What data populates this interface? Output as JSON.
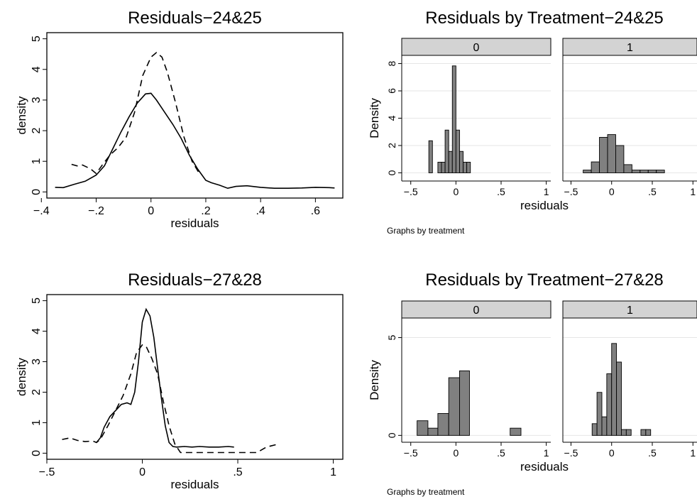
{
  "figure": {
    "background": "#ffffff",
    "bar_fill": "#808080",
    "strip_fill": "#d3d3d3",
    "grid_color": "#e6e6e6"
  },
  "chart_data": [
    {
      "type": "line",
      "title": "Residuals−24&25",
      "xlabel": "residuals",
      "ylabel": "density",
      "xlim": [
        -0.38,
        0.7
      ],
      "ylim": [
        -0.2,
        5.2
      ],
      "x_ticks": [
        -0.4,
        -0.2,
        0,
        0.2,
        0.4,
        0.6
      ],
      "x_tick_labels": [
        "−.4",
        "−.2",
        "0",
        ".2",
        ".4",
        ".6"
      ],
      "y_ticks": [
        0,
        1,
        2,
        3,
        4,
        5
      ],
      "y_tick_labels": [
        "0",
        "1",
        "2",
        "3",
        "4",
        "5"
      ],
      "series": [
        {
          "style": "solid",
          "x": [
            -0.35,
            -0.32,
            -0.28,
            -0.24,
            -0.2,
            -0.17,
            -0.14,
            -0.11,
            -0.08,
            -0.05,
            -0.02,
            0,
            0.02,
            0.05,
            0.08,
            0.11,
            0.14,
            0.17,
            0.2,
            0.22,
            0.25,
            0.28,
            0.31,
            0.35,
            0.4,
            0.45,
            0.5,
            0.55,
            0.6,
            0.65,
            0.67
          ],
          "y": [
            0.15,
            0.14,
            0.25,
            0.35,
            0.55,
            0.85,
            1.4,
            1.95,
            2.45,
            2.9,
            3.2,
            3.22,
            3.0,
            2.6,
            2.2,
            1.75,
            1.2,
            0.75,
            0.38,
            0.3,
            0.22,
            0.12,
            0.18,
            0.2,
            0.15,
            0.12,
            0.12,
            0.13,
            0.15,
            0.14,
            0.13
          ]
        },
        {
          "style": "dashed",
          "x": [
            -0.29,
            -0.27,
            -0.25,
            -0.22,
            -0.2,
            -0.18,
            -0.15,
            -0.12,
            -0.09,
            -0.06,
            -0.03,
            0,
            0.02,
            0.04,
            0.06,
            0.09,
            0.12,
            0.15,
            0.18
          ],
          "y": [
            0.9,
            0.85,
            0.88,
            0.75,
            0.6,
            0.85,
            1.2,
            1.45,
            1.8,
            2.6,
            3.8,
            4.4,
            4.55,
            4.4,
            3.9,
            2.9,
            1.8,
            1.0,
            0.55
          ]
        }
      ]
    },
    {
      "type": "bar",
      "title": "Residuals by Treatment−24&25",
      "xlabel": "residuals",
      "ylabel": "Density",
      "note": "Graphs by treatment",
      "xlim": [
        -0.6,
        1.05
      ],
      "ylim": [
        -0.6,
        8.6
      ],
      "x_ticks": [
        -0.5,
        0,
        0.5,
        1
      ],
      "x_tick_labels": [
        "−.5",
        "0",
        ".5",
        "1"
      ],
      "y_ticks": [
        0,
        2,
        4,
        6,
        8
      ],
      "y_tick_labels": [
        "0",
        "2",
        "4",
        "6",
        "8"
      ],
      "panels": [
        {
          "label": "0",
          "bins": [
            [
              -0.3,
              -0.26,
              2.35
            ],
            [
              -0.2,
              -0.16,
              0.78
            ],
            [
              -0.16,
              -0.12,
              0.78
            ],
            [
              -0.12,
              -0.08,
              3.13
            ],
            [
              -0.08,
              -0.04,
              1.57
            ],
            [
              -0.04,
              0,
              7.83
            ],
            [
              0,
              0.04,
              3.13
            ],
            [
              0.04,
              0.08,
              1.57
            ],
            [
              0.08,
              0.12,
              0.78
            ],
            [
              0.12,
              0.16,
              0.78
            ]
          ]
        },
        {
          "label": "1",
          "bins": [
            [
              -0.35,
              -0.25,
              0.2
            ],
            [
              -0.25,
              -0.15,
              0.8
            ],
            [
              -0.15,
              -0.05,
              2.6
            ],
            [
              -0.05,
              0.05,
              2.8
            ],
            [
              0.05,
              0.15,
              2.0
            ],
            [
              0.15,
              0.25,
              0.6
            ],
            [
              0.25,
              0.35,
              0.2
            ],
            [
              0.35,
              0.45,
              0.2
            ],
            [
              0.45,
              0.55,
              0.2
            ],
            [
              0.55,
              0.65,
              0.2
            ]
          ]
        }
      ]
    },
    {
      "type": "line",
      "title": "Residuals−27&28",
      "xlabel": "residuals",
      "ylabel": "density",
      "xlim": [
        -0.5,
        1.05
      ],
      "ylim": [
        -0.2,
        5.2
      ],
      "x_ticks": [
        -0.5,
        0,
        0.5,
        1
      ],
      "x_tick_labels": [
        "−.5",
        "0",
        ".5",
        "1"
      ],
      "y_ticks": [
        0,
        1,
        2,
        3,
        4,
        5
      ],
      "y_tick_labels": [
        "0",
        "1",
        "2",
        "3",
        "4",
        "5"
      ],
      "series": [
        {
          "style": "solid",
          "x": [
            -0.24,
            -0.22,
            -0.2,
            -0.17,
            -0.14,
            -0.11,
            -0.08,
            -0.06,
            -0.04,
            -0.02,
            0,
            0.02,
            0.04,
            0.06,
            0.08,
            0.1,
            0.12,
            0.14,
            0.16,
            0.18,
            0.22,
            0.26,
            0.3,
            0.35,
            0.4,
            0.45,
            0.48
          ],
          "y": [
            0.35,
            0.5,
            0.85,
            1.2,
            1.4,
            1.6,
            1.65,
            1.6,
            2.0,
            3.0,
            4.3,
            4.72,
            4.5,
            3.8,
            2.8,
            1.8,
            0.9,
            0.35,
            0.22,
            0.2,
            0.22,
            0.2,
            0.22,
            0.2,
            0.2,
            0.22,
            0.2
          ]
        },
        {
          "style": "dashed",
          "x": [
            -0.42,
            -0.38,
            -0.34,
            -0.3,
            -0.26,
            -0.24,
            -0.22,
            -0.18,
            -0.14,
            -0.1,
            -0.06,
            -0.03,
            0,
            0.02,
            0.05,
            0.08,
            0.11,
            0.14,
            0.17,
            0.2,
            0.3,
            0.4,
            0.5,
            0.6,
            0.65,
            0.7
          ],
          "y": [
            0.45,
            0.5,
            0.42,
            0.38,
            0.4,
            0.35,
            0.45,
            0.9,
            1.4,
            1.9,
            2.6,
            3.3,
            3.55,
            3.5,
            3.1,
            2.6,
            1.7,
            0.9,
            0.3,
            0.02,
            0.02,
            0.02,
            0.02,
            0.02,
            0.2,
            0.28
          ]
        }
      ]
    },
    {
      "type": "bar",
      "title": "Residuals by Treatment−27&28",
      "xlabel": "residuals",
      "ylabel": "Density",
      "note": "Graphs by treatment",
      "xlim": [
        -0.6,
        1.05
      ],
      "ylim": [
        -0.35,
        6.0
      ],
      "x_ticks": [
        -0.5,
        0,
        0.5,
        1
      ],
      "x_tick_labels": [
        "−.5",
        "0",
        ".5",
        "1"
      ],
      "y_ticks": [
        0,
        5
      ],
      "y_tick_labels": [
        "0",
        "5"
      ],
      "panels": [
        {
          "label": "0",
          "bins": [
            [
              -0.43,
              -0.31,
              0.75
            ],
            [
              -0.31,
              -0.2,
              0.37
            ],
            [
              -0.2,
              -0.08,
              1.12
            ],
            [
              -0.08,
              0.04,
              2.95
            ],
            [
              0.04,
              0.15,
              3.3
            ],
            [
              0.6,
              0.72,
              0.37
            ]
          ]
        },
        {
          "label": "1",
          "bins": [
            [
              -0.24,
              -0.18,
              0.6
            ],
            [
              -0.18,
              -0.12,
              2.2
            ],
            [
              -0.12,
              -0.06,
              0.95
            ],
            [
              -0.06,
              0,
              3.15
            ],
            [
              0,
              0.06,
              4.7
            ],
            [
              0.06,
              0.12,
              3.75
            ],
            [
              0.12,
              0.18,
              0.3
            ],
            [
              0.18,
              0.24,
              0.3
            ],
            [
              0.36,
              0.42,
              0.3
            ],
            [
              0.42,
              0.48,
              0.3
            ]
          ]
        }
      ]
    }
  ]
}
